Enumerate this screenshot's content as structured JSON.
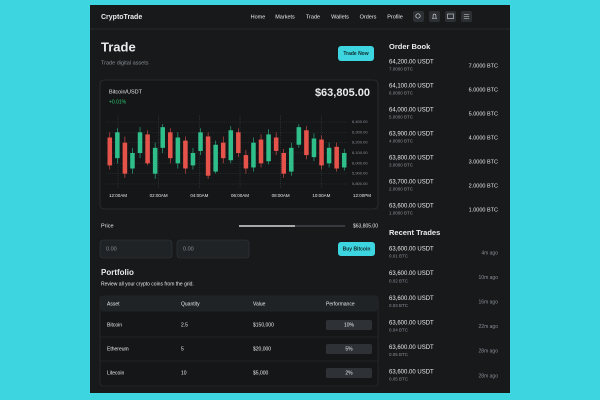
{
  "header": {
    "logo": "CryptoTrade",
    "nav": [
      "Home",
      "Markets",
      "Trade",
      "Wallets",
      "Orders",
      "Profile"
    ]
  },
  "trade": {
    "title": "Trade",
    "subtitle": "Trade digital assets",
    "button": "Trade Now"
  },
  "chart": {
    "pair": "Bitcoin/USDT",
    "change": "+0.01%",
    "price": "$63,805.00",
    "ylim": [
      5800,
      6400
    ],
    "yticks": [
      {
        "value": 6400,
        "label": "6,400.00"
      },
      {
        "value": 6300,
        "label": "6,300.00"
      },
      {
        "value": 6200,
        "label": "6,200.00"
      },
      {
        "value": 6100,
        "label": "6,100.00"
      },
      {
        "value": 6000,
        "label": "6,000.00"
      },
      {
        "value": 5900,
        "label": "5,900.00"
      },
      {
        "value": 5800,
        "label": "5,800.00"
      }
    ],
    "xticks": [
      "12:00AM",
      "02:00AM",
      "04:00AM",
      "06:00AM",
      "08:00AM",
      "10:00AM",
      "12:00PM"
    ],
    "candles": [
      [
        6250,
        5980,
        6300,
        5940
      ],
      [
        6050,
        6300,
        6340,
        6000
      ],
      [
        6200,
        5900,
        6260,
        5860
      ],
      [
        5950,
        6100,
        6150,
        5900
      ],
      [
        6100,
        6300,
        6350,
        6050
      ],
      [
        6280,
        6000,
        6320,
        5980
      ],
      [
        5900,
        6150,
        6200,
        5850
      ],
      [
        6150,
        6350,
        6380,
        6100
      ],
      [
        6300,
        6050,
        6340,
        6000
      ],
      [
        6000,
        6250,
        6300,
        5950
      ],
      [
        6220,
        5950,
        6260,
        5900
      ],
      [
        5980,
        6100,
        6150,
        5940
      ],
      [
        6120,
        6300,
        6340,
        6080
      ],
      [
        6260,
        5880,
        6300,
        5850
      ],
      [
        5920,
        6180,
        6220,
        5900
      ],
      [
        6200,
        6050,
        6260,
        6000
      ],
      [
        6030,
        6320,
        6360,
        6000
      ],
      [
        6300,
        6100,
        6340,
        6060
      ],
      [
        6080,
        5950,
        6130,
        5900
      ],
      [
        5960,
        6200,
        6250,
        5920
      ],
      [
        6230,
        6000,
        6280,
        5960
      ],
      [
        6020,
        6280,
        6330,
        5990
      ],
      [
        6250,
        6120,
        6300,
        6080
      ],
      [
        6100,
        5900,
        6140,
        5860
      ],
      [
        5920,
        6150,
        6200,
        5880
      ],
      [
        6180,
        6350,
        6380,
        6150
      ],
      [
        6320,
        6080,
        6360,
        6040
      ],
      [
        6060,
        6240,
        6290,
        6020
      ],
      [
        6230,
        5980,
        6270,
        5940
      ],
      [
        6000,
        6150,
        6200,
        5960
      ],
      [
        6160,
        5950,
        6200,
        5920
      ],
      [
        5960,
        6100,
        6140,
        5930
      ]
    ]
  },
  "order_form": {
    "price_label": "Price",
    "price_value": "$63,805.00",
    "inputs": [
      "0.00",
      "0.00"
    ],
    "button": "Buy Bitcoin"
  },
  "portfolio": {
    "title": "Portfolio",
    "subtitle": "Review all your crypto coins from the grid.",
    "columns": [
      "Asset",
      "Quantity",
      "Value",
      "Performance"
    ],
    "rows": [
      [
        "Bitcoin",
        "2.5",
        "$150,000",
        "10%"
      ],
      [
        "Ethereum",
        "5",
        "$20,000",
        "5%"
      ],
      [
        "Litecoin",
        "10",
        "$5,000",
        "2%"
      ]
    ]
  },
  "order_book": {
    "title": "Order Book",
    "rows": [
      [
        "64,200.00 USDT",
        "7.0000 BTC",
        "7.0000 BTC"
      ],
      [
        "64,100.00 USDT",
        "6.0000 BTC",
        "6.0000 BTC"
      ],
      [
        "64,000.00 USDT",
        "5.0000 BTC",
        "5.0000 BTC"
      ],
      [
        "63,900.00 USDT",
        "4.0000 BTC",
        "4.0000 BTC"
      ],
      [
        "63,800.00 USDT",
        "3.0000 BTC",
        "3.0000 BTC"
      ],
      [
        "63,700.00 USDT",
        "2.0000 BTC",
        "2.0000 BTC"
      ],
      [
        "63,600.00 USDT",
        "1.0000 BTC",
        "1.0000 BTC"
      ]
    ]
  },
  "recent_trades": {
    "title": "Recent Trades",
    "rows": [
      [
        "63,600.00 USDT",
        "0.01 BTC",
        "4m ago"
      ],
      [
        "63,600.00 USDT",
        "0.02 BTC",
        "10m ago"
      ],
      [
        "63,600.00 USDT",
        "0.03 BTC",
        "16m ago"
      ],
      [
        "63,600.00 USDT",
        "0.04 BTC",
        "22m ago"
      ],
      [
        "63,600.00 USDT",
        "0.05 BTC",
        "28m ago"
      ],
      [
        "63,600.00 USDT",
        "0.05 BTC",
        "28m ago"
      ]
    ]
  }
}
